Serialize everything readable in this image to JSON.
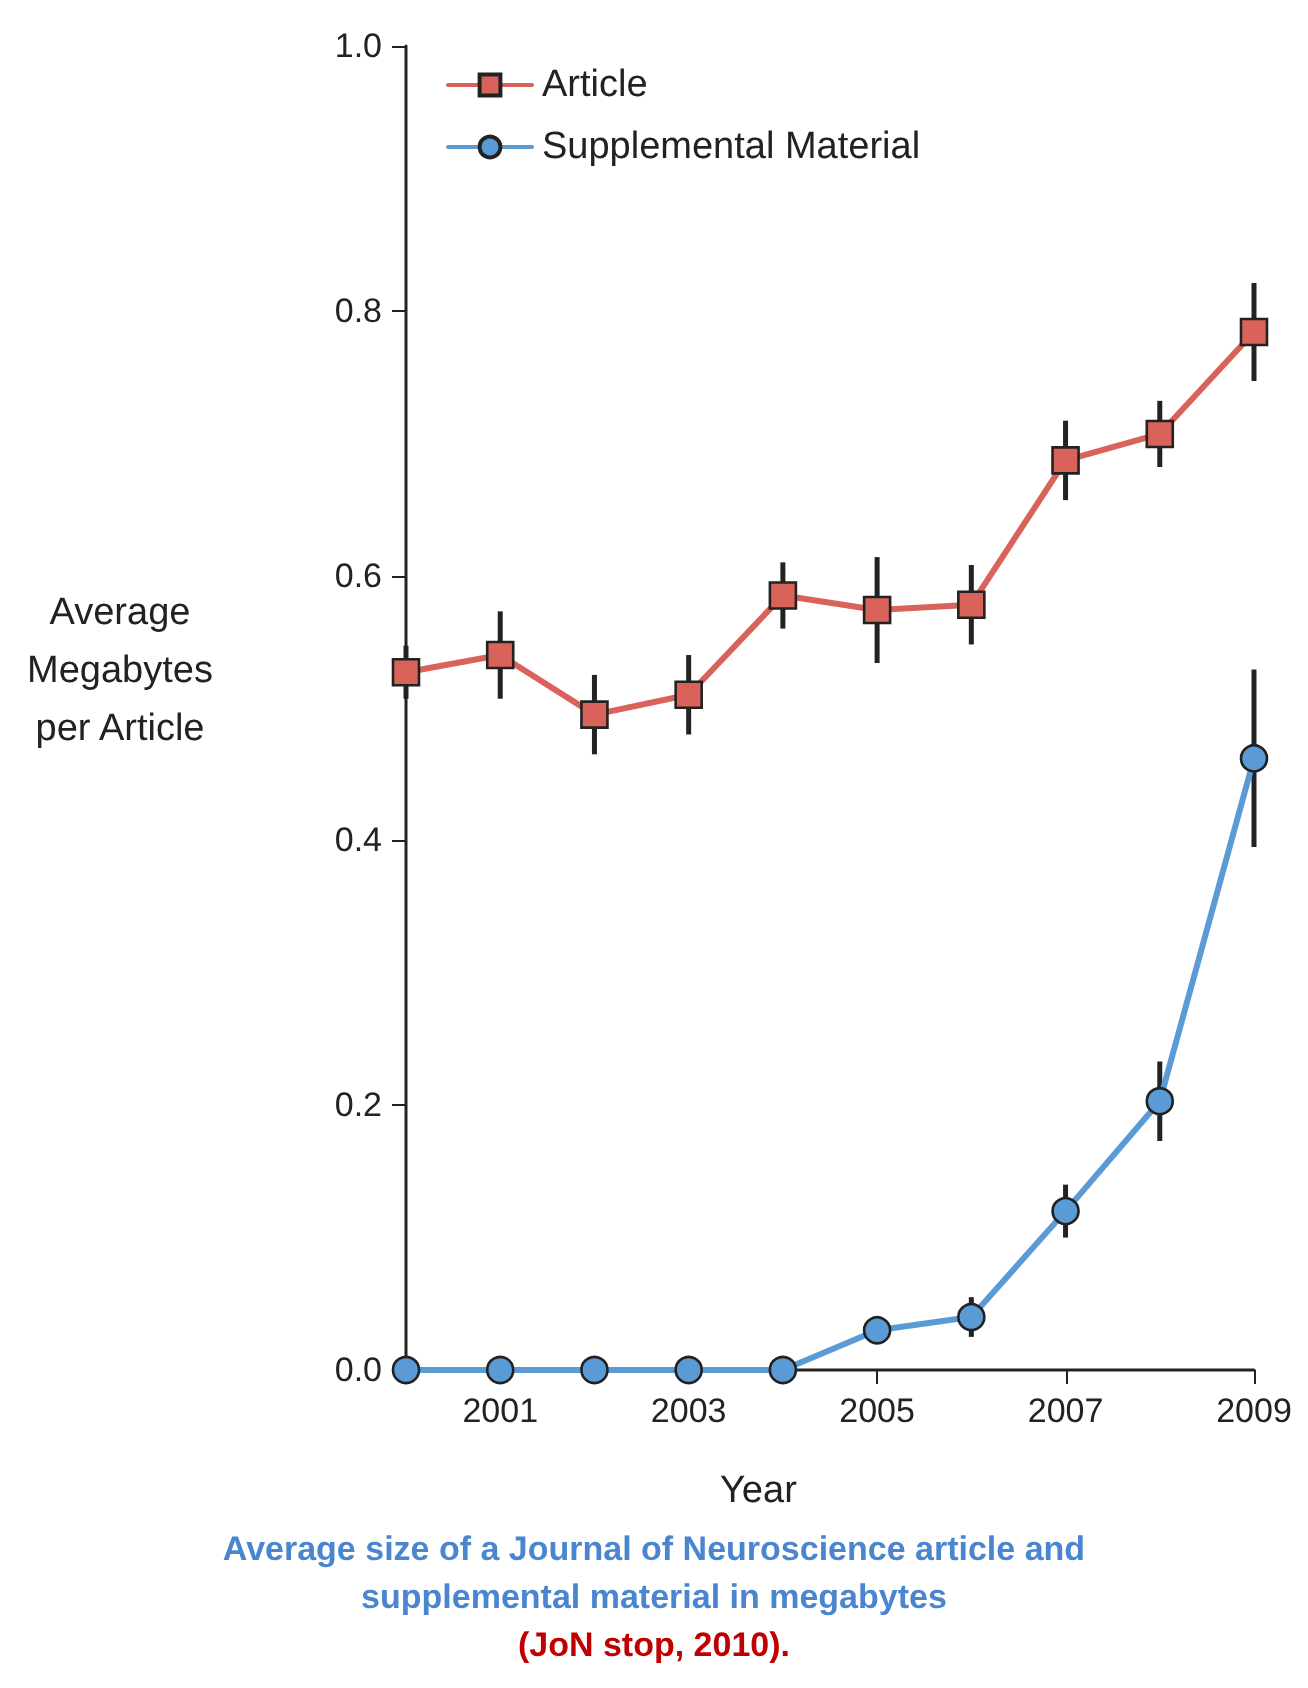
{
  "chart_data": {
    "type": "line",
    "xlabel": "Year",
    "ylabel": "Average Megabytes per Article",
    "annotations": [
      "Average size of a Journal of Neuroscience article and supplemental material in megabytes",
      "(JoN stop, 2010)."
    ],
    "x": [
      2000,
      2001,
      2002,
      2003,
      2004,
      2005,
      2006,
      2007,
      2008,
      2009
    ],
    "series": [
      {
        "name": "Article",
        "color": "#d9625a",
        "marker": "square",
        "values": [
          0.527,
          0.54,
          0.495,
          0.51,
          0.585,
          0.574,
          0.578,
          0.687,
          0.707,
          0.784
        ],
        "errors": [
          0.02,
          0.033,
          0.03,
          0.03,
          0.025,
          0.04,
          0.03,
          0.03,
          0.025,
          0.037
        ]
      },
      {
        "name": "Supplemental Material",
        "color": "#5b9bd5",
        "marker": "circle",
        "values": [
          0,
          0,
          0,
          0,
          0,
          0.03,
          0.04,
          0.12,
          0.203,
          0.462
        ],
        "errors": [
          null,
          null,
          null,
          null,
          null,
          0.006,
          0.015,
          0.02,
          0.03,
          0.067
        ]
      }
    ],
    "xlim": [
      2000,
      2009
    ],
    "xticks": [
      2001,
      2003,
      2005,
      2007,
      2009
    ],
    "ylim": [
      0,
      1
    ],
    "yticks": [
      {
        "value": 0,
        "label": "0.0"
      },
      {
        "value": 0.2,
        "label": "0.2"
      },
      {
        "value": 0.4,
        "label": "0.4"
      },
      {
        "value": 0.6,
        "label": "0.6"
      },
      {
        "value": 0.8,
        "label": "0.8"
      },
      {
        "value": 1,
        "label": "1.0"
      }
    ],
    "grid": false,
    "legend": "top left",
    "line_style": "solid"
  }
}
